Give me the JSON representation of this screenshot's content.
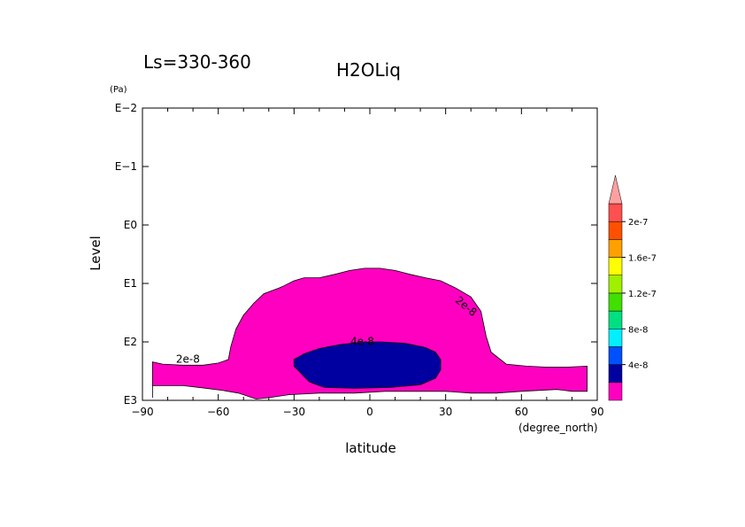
{
  "chart_data": {
    "type": "heatmap",
    "title": "H2OLiq",
    "subtitle": "Ls=330-360",
    "xlabel": "latitude",
    "x_unit": "(degree_north)",
    "ylabel": "Level",
    "y_unit": "(Pa)",
    "xlim": [
      -90,
      90
    ],
    "x_ticks": [
      -90,
      -60,
      -30,
      0,
      30,
      60,
      90
    ],
    "x_tick_labels": [
      "−90",
      "−60",
      "−30",
      "0",
      "30",
      "60",
      "90"
    ],
    "y_scale": "log",
    "ylim": [
      1000,
      0.01
    ],
    "y_ticks": [
      0.01,
      0.1,
      1,
      10,
      100,
      1000
    ],
    "y_tick_labels": [
      "E−2",
      "E−1",
      "E0",
      "E1",
      "E2",
      "E3"
    ],
    "contour_labels": [
      {
        "text": "2e-8",
        "lat": -72,
        "level": 200
      },
      {
        "text": "2e-8",
        "lat": 38,
        "level": 25
      },
      {
        "text": "4e-8",
        "lat": -3,
        "level": 100
      }
    ],
    "regions": [
      {
        "level_min": 2e-08,
        "color": "#ff00c0",
        "boundary": [
          [
            -86,
            900
          ],
          [
            -86,
            220
          ],
          [
            -82,
            240
          ],
          [
            -74,
            250
          ],
          [
            -66,
            250
          ],
          [
            -60,
            230
          ],
          [
            -56,
            200
          ],
          [
            -55,
            120
          ],
          [
            -53,
            60
          ],
          [
            -50,
            35
          ],
          [
            -46,
            22
          ],
          [
            -42,
            15
          ],
          [
            -36,
            12
          ],
          [
            -34,
            11
          ],
          [
            -30,
            9
          ],
          [
            -26,
            8
          ],
          [
            -20,
            8
          ],
          [
            -14,
            7
          ],
          [
            -8,
            6
          ],
          [
            -2,
            5.5
          ],
          [
            4,
            5.5
          ],
          [
            10,
            6
          ],
          [
            16,
            7
          ],
          [
            22,
            8
          ],
          [
            28,
            9
          ],
          [
            34,
            12
          ],
          [
            40,
            17
          ],
          [
            44,
            30
          ],
          [
            46,
            80
          ],
          [
            48,
            150
          ],
          [
            54,
            240
          ],
          [
            62,
            260
          ],
          [
            70,
            270
          ],
          [
            78,
            270
          ],
          [
            86,
            260
          ],
          [
            86,
            700
          ],
          [
            80,
            700
          ],
          [
            74,
            650
          ],
          [
            60,
            700
          ],
          [
            50,
            750
          ],
          [
            40,
            750
          ],
          [
            30,
            700
          ],
          [
            18,
            700
          ],
          [
            6,
            700
          ],
          [
            -6,
            750
          ],
          [
            -20,
            750
          ],
          [
            -32,
            800
          ],
          [
            -40,
            900
          ],
          [
            -45,
            950
          ],
          [
            -52,
            750
          ],
          [
            -58,
            680
          ],
          [
            -65,
            620
          ],
          [
            -74,
            560
          ],
          [
            -80,
            560
          ],
          [
            -86,
            560
          ]
        ]
      },
      {
        "level_min": 4e-08,
        "color": "#0000a0",
        "boundary": [
          [
            -30,
            200
          ],
          [
            -26,
            160
          ],
          [
            -20,
            130
          ],
          [
            -12,
            112
          ],
          [
            -4,
            102
          ],
          [
            4,
            100
          ],
          [
            14,
            106
          ],
          [
            22,
            125
          ],
          [
            26,
            150
          ],
          [
            28,
            200
          ],
          [
            28,
            300
          ],
          [
            26,
            420
          ],
          [
            20,
            540
          ],
          [
            8,
            600
          ],
          [
            -6,
            620
          ],
          [
            -18,
            600
          ],
          [
            -20,
            560
          ],
          [
            -24,
            480
          ],
          [
            -30,
            260
          ]
        ]
      }
    ],
    "colorbar": {
      "levels": [
        0,
        2e-08,
        4e-08,
        6e-08,
        8e-08,
        1e-07,
        1.2e-07,
        1.4e-07,
        1.6e-07,
        1.8e-07,
        2e-07,
        2.2e-07
      ],
      "colors": [
        "#ff00c0",
        "#0000a0",
        "#0050ff",
        "#00f0ff",
        "#00e080",
        "#40e000",
        "#a0f000",
        "#ffff00",
        "#ffa000",
        "#ff5000",
        "#ff5050",
        "#ffa0a0"
      ],
      "extend": "max",
      "tick_labels": [
        "4e-8",
        "8e-8",
        "1.2e-7",
        "1.6e-7",
        "2e-7"
      ],
      "tick_values": [
        4e-08,
        8e-08,
        1.2e-07,
        1.6e-07,
        2e-07
      ]
    }
  }
}
